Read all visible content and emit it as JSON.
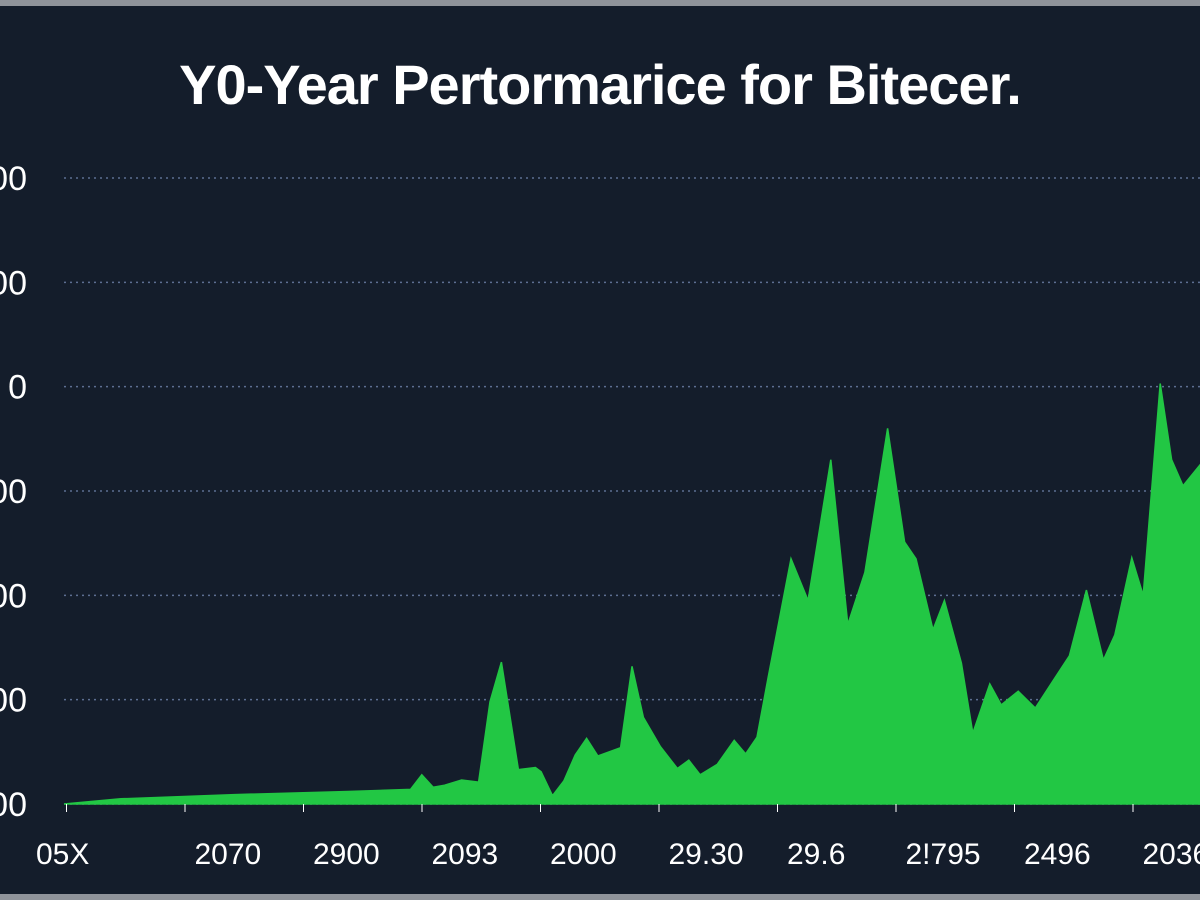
{
  "colors": {
    "background": "#141d2b",
    "area_fill": "#22c744",
    "gridline": "#5d6f92",
    "text": "#ffffff"
  },
  "chart_data": {
    "type": "area",
    "title": "Y0-Year Pertormarice for Bitecer.",
    "xlabel": "",
    "ylabel": "",
    "grid": true,
    "legend": "none",
    "ytick_labels": [
      "00",
      "00",
      "0",
      "00",
      "00",
      "00",
      "00"
    ],
    "xtick_labels": [
      "05X",
      "2070",
      "2900",
      "2093",
      "2000",
      "29.30",
      "29.6",
      "2!795",
      "2496",
      "2036"
    ],
    "xlim": [
      0,
      100
    ],
    "ylim": [
      0,
      6
    ],
    "series": [
      {
        "name": "performance",
        "x": [
          0,
          5,
          15,
          25,
          30.5,
          31.5,
          32.5,
          33.5,
          35,
          36.5,
          37.5,
          38.5,
          40,
          41.5,
          42,
          43,
          44,
          45,
          46,
          47,
          49,
          50,
          51,
          52.5,
          54,
          55,
          56,
          57.5,
          59,
          60,
          61,
          62,
          64,
          65.5,
          67.5,
          69,
          70.5,
          72.5,
          74,
          75,
          76.5,
          77.5,
          79,
          80,
          81.5,
          82.5,
          84,
          85.5,
          87,
          88.5,
          90,
          91.5,
          92.5,
          94,
          95,
          96.5,
          97.5,
          98.5,
          100
        ],
        "y": [
          0,
          0.05,
          0.09,
          0.12,
          0.14,
          0.28,
          0.16,
          0.18,
          0.23,
          0.21,
          0.98,
          1.36,
          0.33,
          0.35,
          0.31,
          0.08,
          0.22,
          0.47,
          0.63,
          0.46,
          0.54,
          1.32,
          0.83,
          0.55,
          0.34,
          0.42,
          0.28,
          0.38,
          0.61,
          0.48,
          0.64,
          1.22,
          2.35,
          1.95,
          3.3,
          1.72,
          2.22,
          3.6,
          2.51,
          2.35,
          1.67,
          1.95,
          1.35,
          0.68,
          1.15,
          0.95,
          1.08,
          0.92,
          1.17,
          1.42,
          2.05,
          1.38,
          1.62,
          2.36,
          2.0,
          4.03,
          3.3,
          3.05,
          3.25
        ]
      }
    ]
  }
}
